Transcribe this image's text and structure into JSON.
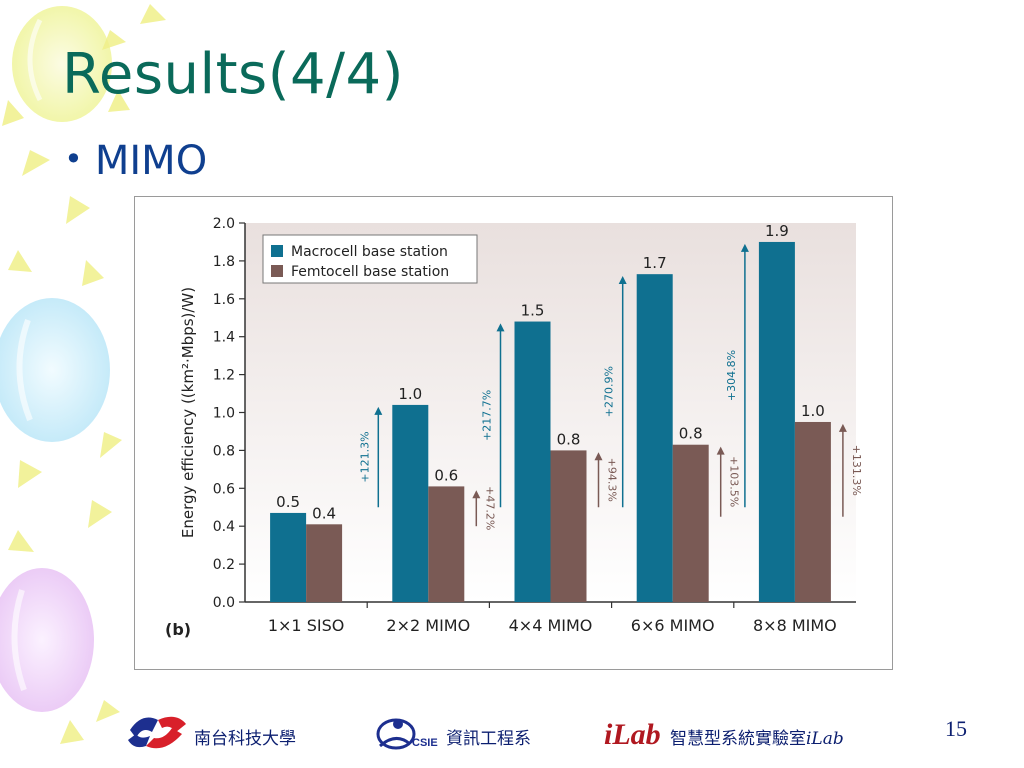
{
  "slide": {
    "title": "Results(4/4)",
    "bullet": "MIMO",
    "page_number": "15"
  },
  "footer": {
    "school": "南台科技大學",
    "logo_csie_text": "CSIE",
    "department": "資訊工程系",
    "lab_prefix": "智慧型系統實驗室",
    "lab_name": "iLab",
    "lab_logo_text": "iLab"
  },
  "colors": {
    "title": "#0a6a5a",
    "bullet": "#0f3f8f",
    "macro": "#0f7090",
    "femto": "#7a5a55",
    "plot_bg_top": "#e9e0de",
    "plot_bg_bottom": "#ffffff",
    "footer_text": "#0c1f70"
  },
  "chart_data": {
    "type": "bar",
    "panel_label": "(b)",
    "ylabel": "Energy efficiency ((km²·Mbps)/W)",
    "ylim": [
      0,
      2.0
    ],
    "yticks": [
      "0.0",
      "0.2",
      "0.4",
      "0.6",
      "0.8",
      "1.0",
      "1.2",
      "1.4",
      "1.6",
      "1.8",
      "2.0"
    ],
    "categories": [
      "1×1 SISO",
      "2×2 MIMO",
      "4×4 MIMO",
      "6×6 MIMO",
      "8×8 MIMO"
    ],
    "legend_position": "top-left",
    "series": [
      {
        "name": "Macrocell base station",
        "values": [
          0.47,
          1.04,
          1.48,
          1.73,
          1.9
        ],
        "labels": [
          "0.5",
          "1.0",
          "1.5",
          "1.7",
          "1.9"
        ]
      },
      {
        "name": "Femtocell base station",
        "values": [
          0.41,
          0.61,
          0.8,
          0.83,
          0.95
        ],
        "labels": [
          "0.4",
          "0.6",
          "0.8",
          "0.8",
          "1.0"
        ]
      }
    ],
    "annotations": [
      {
        "category": "2×2 MIMO",
        "series": "Macrocell base station",
        "text": "+121.3%",
        "from": 0.5,
        "to": 1.03
      },
      {
        "category": "2×2 MIMO",
        "series": "Femtocell base station",
        "text": "+47.2%",
        "from": 0.4,
        "to": 0.59
      },
      {
        "category": "4×4 MIMO",
        "series": "Macrocell base station",
        "text": "+217.7%",
        "from": 0.5,
        "to": 1.47
      },
      {
        "category": "4×4 MIMO",
        "series": "Femtocell base station",
        "text": "+94.3%",
        "from": 0.5,
        "to": 0.79
      },
      {
        "category": "6×6 MIMO",
        "series": "Macrocell base station",
        "text": "+270.9%",
        "from": 0.5,
        "to": 1.72
      },
      {
        "category": "6×6 MIMO",
        "series": "Femtocell base station",
        "text": "+103.5%",
        "from": 0.45,
        "to": 0.82
      },
      {
        "category": "8×8 MIMO",
        "series": "Macrocell base station",
        "text": "+304.8%",
        "from": 0.5,
        "to": 1.89
      },
      {
        "category": "8×8 MIMO",
        "series": "Femtocell base station",
        "text": "+131.3%",
        "from": 0.45,
        "to": 0.94
      }
    ]
  }
}
